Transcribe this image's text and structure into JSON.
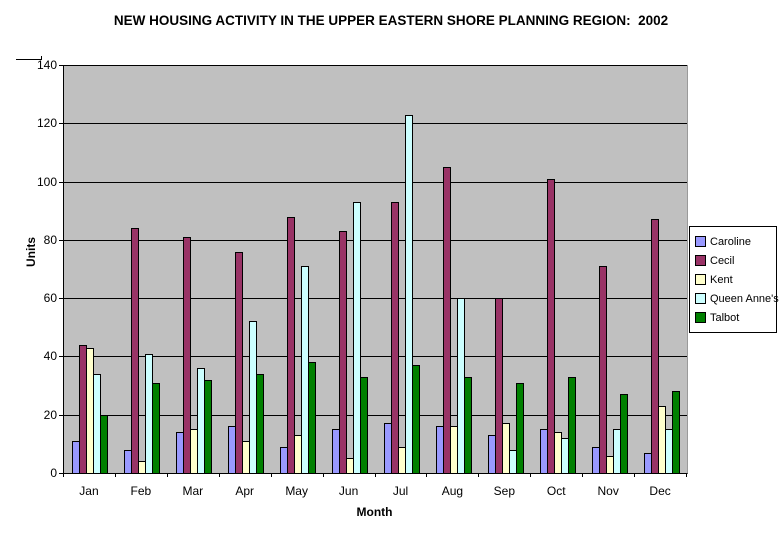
{
  "title": "NEW HOUSING ACTIVITY IN THE UPPER EASTERN SHORE PLANNING REGION:  2002",
  "y_axis": {
    "label": "Units",
    "ticks": [
      0,
      20,
      40,
      60,
      80,
      100,
      120,
      140
    ]
  },
  "x_axis": {
    "label": "Month"
  },
  "plot": {
    "background": "#c0c0c0",
    "gridline_color": "#000000"
  },
  "legend": {
    "position": "right"
  },
  "chart_data": {
    "type": "bar",
    "title": "NEW HOUSING ACTIVITY IN THE UPPER EASTERN SHORE PLANNING REGION:  2002",
    "xlabel": "Month",
    "ylabel": "Units",
    "ylim": [
      0,
      140
    ],
    "grid": true,
    "legend_position": "right",
    "categories": [
      "Jan",
      "Feb",
      "Mar",
      "Apr",
      "May",
      "Jun",
      "Jul",
      "Aug",
      "Sep",
      "Oct",
      "Nov",
      "Dec"
    ],
    "series": [
      {
        "name": "Caroline",
        "color": "#9999ff",
        "values": [
          11,
          8,
          14,
          16,
          9,
          15,
          17,
          16,
          13,
          15,
          9,
          7
        ]
      },
      {
        "name": "Cecil",
        "color": "#993366",
        "values": [
          44,
          84,
          81,
          76,
          88,
          83,
          93,
          105,
          60,
          101,
          71,
          87
        ]
      },
      {
        "name": "Kent",
        "color": "#ffffcc",
        "values": [
          43,
          4,
          15,
          11,
          13,
          5,
          9,
          16,
          17,
          14,
          6,
          23
        ]
      },
      {
        "name": "Queen Anne's",
        "color": "#ccffff",
        "values": [
          34,
          41,
          36,
          52,
          71,
          93,
          123,
          60,
          8,
          12,
          15,
          15
        ]
      },
      {
        "name": "Talbot",
        "color": "#008000",
        "values": [
          20,
          31,
          32,
          34,
          38,
          33,
          37,
          33,
          31,
          33,
          27,
          28
        ]
      }
    ]
  }
}
